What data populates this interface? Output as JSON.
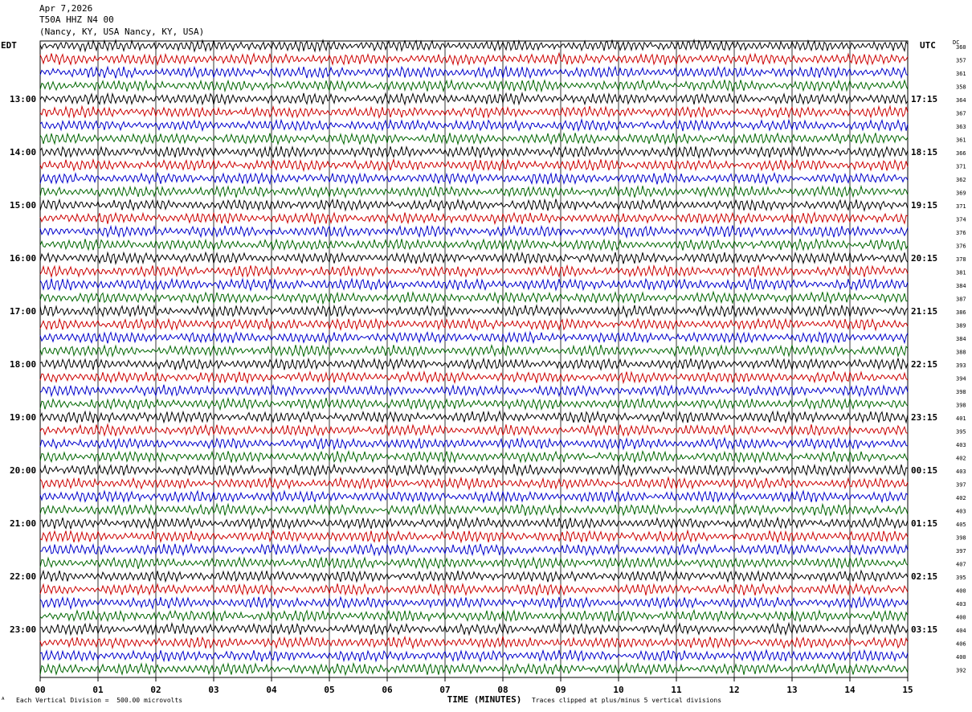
{
  "header": {
    "date": "Apr 7,2026",
    "station": "T50A HHZ N4 00",
    "location": "(Nancy, KY, USA Nancy, KY, USA)"
  },
  "left_zone_label": "EDT",
  "right_zone_label": "UTC",
  "dc_label": "DC",
  "footer": {
    "scale_note": "Each Vertical Division =  500.00 microvolts",
    "clip_note": "Traces clipped at plus/minus 5 vertical divisions",
    "corner_mark": "ᴬ"
  },
  "colors": {
    "trace_cycle": [
      "#000000",
      "#cc0000",
      "#0000cc",
      "#006600"
    ],
    "grid": "#000000"
  },
  "chart_data": {
    "type": "line",
    "subtype": "helicorder",
    "xlabel": "TIME (MINUTES)",
    "x_ticks": [
      "00",
      "01",
      "02",
      "03",
      "04",
      "05",
      "06",
      "07",
      "08",
      "09",
      "10",
      "11",
      "12",
      "13",
      "14",
      "15"
    ],
    "xlim": [
      0,
      15
    ],
    "row_minutes": 15,
    "left_hour_labels": [
      "13:00",
      "14:00",
      "15:00",
      "16:00",
      "17:00",
      "18:00",
      "19:00",
      "20:00",
      "21:00",
      "22:00",
      "23:00"
    ],
    "right_hour_labels": [
      "17:15",
      "18:15",
      "19:15",
      "20:15",
      "21:15",
      "22:15",
      "23:15",
      "00:15",
      "01:15",
      "02:15",
      "03:15"
    ],
    "first_labeled_row": 4,
    "dc_offsets": [
      360,
      357,
      361,
      358,
      364,
      367,
      363,
      361,
      366,
      371,
      362,
      369,
      371,
      374,
      376,
      376,
      378,
      381,
      384,
      387,
      386,
      389,
      384,
      388,
      393,
      394,
      398,
      398,
      401,
      395,
      403,
      402,
      403,
      397,
      402,
      403,
      405,
      398,
      397,
      407,
      395,
      400,
      403,
      400,
      404,
      406,
      400,
      392
    ],
    "amplitude_divisions": 0.35,
    "clip_divisions": 5
  }
}
